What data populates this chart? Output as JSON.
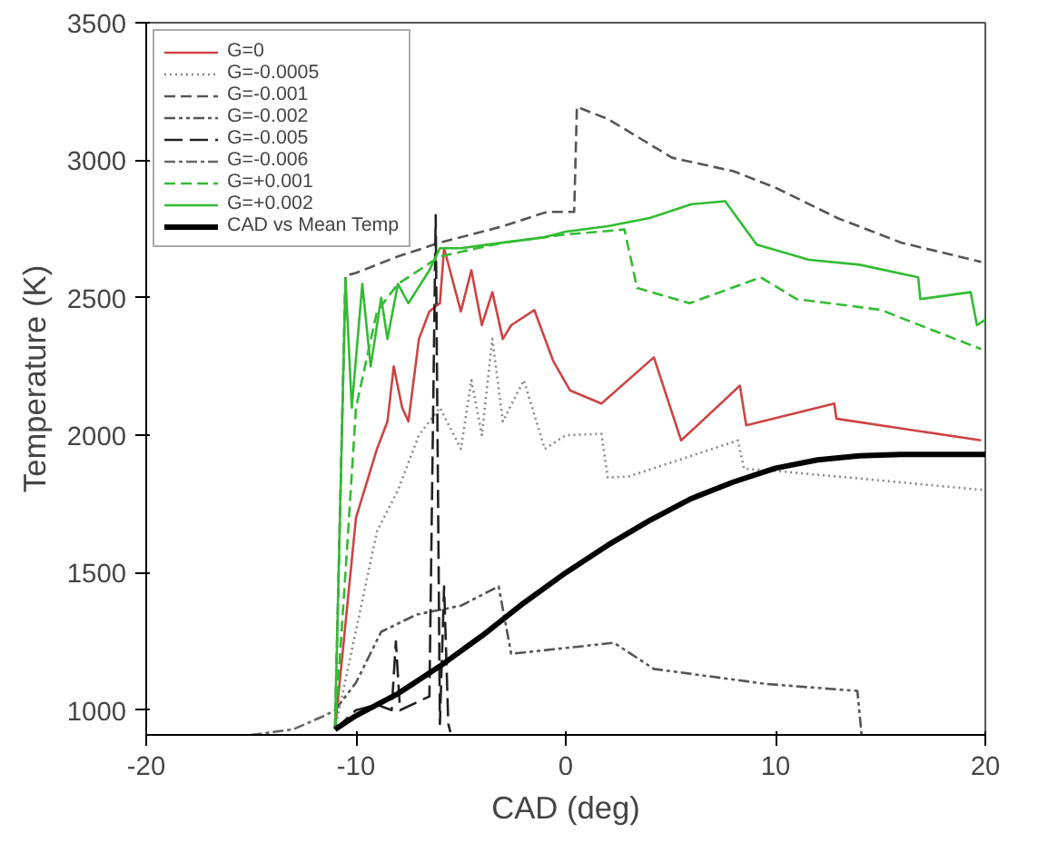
{
  "chart_data": {
    "type": "line",
    "xlabel": "CAD (deg)",
    "ylabel": "Temperature (K)",
    "xlim": [
      -20,
      20
    ],
    "ylim": [
      910,
      3500
    ],
    "xticks": [
      -20,
      -10,
      0,
      10,
      20
    ],
    "yticks": [
      1000,
      1500,
      2000,
      2500,
      3000,
      3500
    ],
    "grid": false,
    "legend": "top left",
    "series": [
      {
        "name": "G=0",
        "color": "#cc4444",
        "line_style": "solid",
        "x": [
          -11,
          -10,
          -9,
          -8.5,
          -8.2,
          -7.8,
          -7.5,
          -7,
          -6.5,
          -6,
          -5.8,
          -5,
          -4.5,
          -4,
          -3.5,
          -3,
          -2.6,
          -1.5,
          -0.6,
          0.2,
          1.7,
          4.2,
          5.5,
          8.3,
          8.6,
          12.8,
          12.9,
          19.8
        ],
        "values": [
          930,
          1700,
          1950,
          2050,
          2250,
          2100,
          2050,
          2350,
          2450,
          2480,
          2680,
          2450,
          2600,
          2400,
          2520,
          2350,
          2400,
          2455,
          2270,
          2163,
          2115,
          2283,
          1981,
          2180,
          2036,
          2115,
          2060,
          1981
        ]
      },
      {
        "name": "G=-0.0005",
        "color": "#888888",
        "line_style": "dotted",
        "x": [
          -11,
          -9,
          -8,
          -7,
          -6,
          -5,
          -4.5,
          -4,
          -3.5,
          -3,
          -2,
          -1,
          0,
          1.7,
          2,
          3,
          5,
          8.2,
          8.5,
          10,
          14.5,
          20
        ],
        "values": [
          930,
          1650,
          1800,
          2000,
          2100,
          1950,
          2200,
          2000,
          2350,
          2050,
          2200,
          1950,
          2000,
          2005,
          1846,
          1850,
          1900,
          1981,
          1878,
          1870,
          1839,
          1800
        ]
      },
      {
        "name": "G=-0.001",
        "color": "#555555",
        "line_style": "dashed",
        "x": [
          -11,
          -10.5,
          -10,
          -8,
          -6,
          -3,
          -0.9,
          0.4,
          0.53,
          2,
          5.07,
          8,
          10,
          13,
          16,
          19.8
        ],
        "values": [
          930,
          2580,
          2590,
          2650,
          2700,
          2760,
          2812,
          2812,
          3194,
          3150,
          3009,
          2960,
          2900,
          2788,
          2700,
          2630
        ]
      },
      {
        "name": "G=-0.002",
        "color": "#555555",
        "line_style": "dashdotdot",
        "x": [
          -11,
          -10,
          -8.8,
          -7.1,
          -5,
          -3.2,
          -2.6,
          2.3,
          4.2,
          9.6,
          13.9,
          14.1
        ],
        "values": [
          1000,
          1100,
          1285,
          1348,
          1380,
          1450,
          1205,
          1245,
          1150,
          1095,
          1070,
          913
        ]
      },
      {
        "name": "G=-0.005",
        "color": "#222222",
        "line_style": "longdash",
        "x": [
          -11,
          -10,
          -9,
          -8.3,
          -8.1,
          -7.9,
          -6.5,
          -6.2,
          -6,
          -5.8,
          -5.6,
          -5.5
        ],
        "values": [
          930,
          1000,
          1020,
          1000,
          1250,
          1000,
          1050,
          2800,
          950,
          1450,
          950,
          920
        ]
      },
      {
        "name": "G=-0.006",
        "color": "#666666",
        "line_style": "dashdot",
        "x": [
          -15,
          -13,
          -11.5,
          -11
        ],
        "values": [
          910,
          930,
          980,
          1000
        ]
      },
      {
        "name": "G=+0.001",
        "color": "#33bb33",
        "line_style": "dashed",
        "x": [
          -11,
          -10.5,
          -10,
          -9,
          -8,
          -6,
          -3,
          0,
          2.8,
          3.4,
          5.9,
          9.3,
          11,
          15,
          19.8
        ],
        "values": [
          930,
          1500,
          2100,
          2450,
          2550,
          2650,
          2700,
          2730,
          2748,
          2535,
          2480,
          2574,
          2495,
          2456,
          2313
        ]
      },
      {
        "name": "G=+0.002",
        "color": "#33bb33",
        "line_style": "solid",
        "x": [
          -11,
          -10.5,
          -10.2,
          -9.7,
          -9.3,
          -8.8,
          -8.5,
          -8,
          -7.5,
          -6.5,
          -6,
          -5,
          -3,
          -1,
          0,
          2,
          4,
          6,
          7.6,
          9.1,
          11.6,
          14,
          16.8,
          16.9,
          19.3,
          19.6,
          20
        ],
        "values": [
          930,
          2570,
          2100,
          2550,
          2250,
          2500,
          2350,
          2550,
          2480,
          2600,
          2680,
          2680,
          2700,
          2720,
          2740,
          2760,
          2790,
          2840,
          2851,
          2693,
          2638,
          2620,
          2574,
          2495,
          2520,
          2400,
          2420
        ]
      },
      {
        "name": "CAD vs Mean Temp",
        "color": "#000000",
        "line_style": "solid",
        "x": [
          -11,
          -10,
          -8,
          -6,
          -4,
          -2,
          0,
          2,
          4,
          6,
          8,
          10,
          12,
          14,
          16,
          20
        ],
        "values": [
          930,
          980,
          1060,
          1160,
          1270,
          1390,
          1500,
          1600,
          1690,
          1770,
          1830,
          1880,
          1910,
          1925,
          1930,
          1930
        ]
      }
    ]
  }
}
